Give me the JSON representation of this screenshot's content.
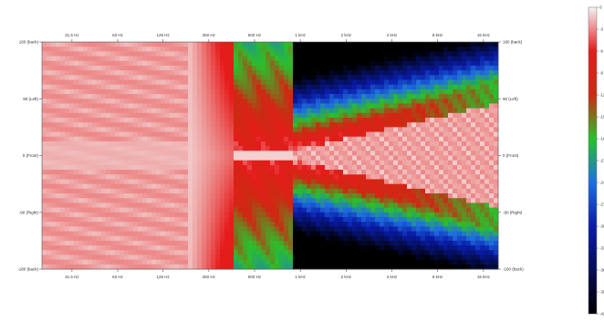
{
  "chart_data": {
    "type": "heatmap",
    "title": "",
    "xlabel": "",
    "ylabel": "",
    "x_scale": "log",
    "x_ticks": [
      {
        "value": 31.5,
        "label": "31.5 Hz"
      },
      {
        "value": 63,
        "label": "63 Hz"
      },
      {
        "value": 125,
        "label": "125 Hz"
      },
      {
        "value": 250,
        "label": "250 Hz"
      },
      {
        "value": 500,
        "label": "500 Hz"
      },
      {
        "value": 1000,
        "label": "1 kHz"
      },
      {
        "value": 2000,
        "label": "2 kHz"
      },
      {
        "value": 4000,
        "label": "4 kHz"
      },
      {
        "value": 8000,
        "label": "8 kHz"
      },
      {
        "value": 16000,
        "label": "16 kHz"
      }
    ],
    "y_ticks_left": [
      {
        "value": 180,
        "label": "180 (back)"
      },
      {
        "value": 90,
        "label": "90 (Left)"
      },
      {
        "value": 0,
        "label": "0 (Front)"
      },
      {
        "value": -90,
        "label": "-90 (Right)"
      },
      {
        "value": -180,
        "label": "-180 (back)"
      }
    ],
    "y_ticks_right": [
      {
        "value": 180,
        "label": "180 (back)"
      },
      {
        "value": 90,
        "label": "90 (Left)"
      },
      {
        "value": 0,
        "label": "0 (Front)"
      },
      {
        "value": -90,
        "label": "-90 (Right)"
      },
      {
        "value": -180,
        "label": "-180 (back)"
      }
    ],
    "xlim": [
      20,
      20000
    ],
    "ylim": [
      -180,
      180
    ],
    "colorbar": {
      "ticks": [
        0,
        -3,
        -6,
        -9,
        -12,
        -15,
        -18,
        -21,
        -24,
        -27,
        -30,
        -33,
        -36,
        -39,
        -42
      ],
      "stops": [
        {
          "value": 0,
          "color": "#f4f4f4"
        },
        {
          "value": -6,
          "color": "#e61b1b"
        },
        {
          "value": -12,
          "color": "#cc2a12"
        },
        {
          "value": -18,
          "color": "#2bbf2b"
        },
        {
          "value": -24,
          "color": "#1f6fe0"
        },
        {
          "value": -30,
          "color": "#0a1ca8"
        },
        {
          "value": -42,
          "color": "#000000"
        }
      ]
    },
    "grid": false
  }
}
